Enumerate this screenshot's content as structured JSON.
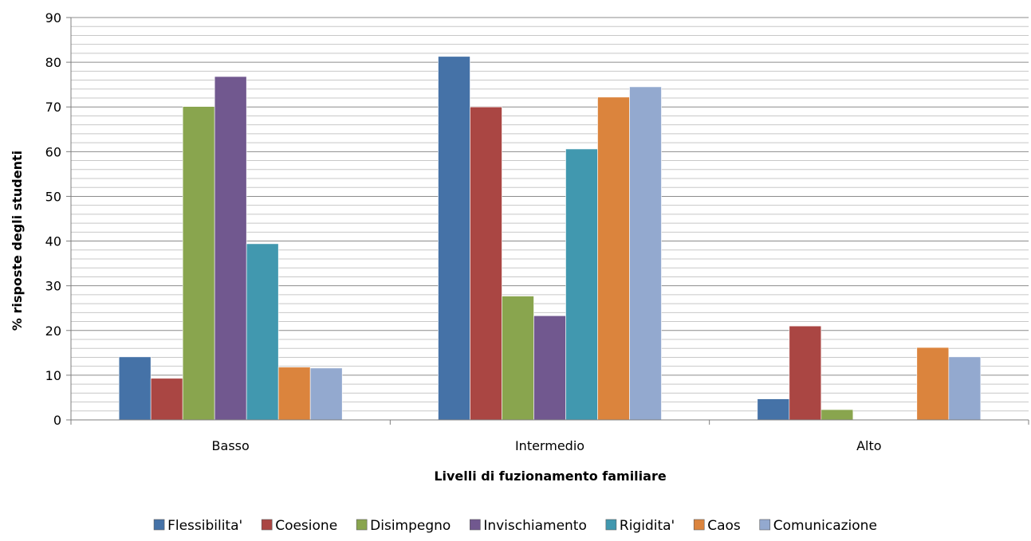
{
  "chart_data": {
    "type": "bar",
    "title": "",
    "xlabel": "Livelli di fuzionamento familiare",
    "ylabel": "% risposte degli studenti",
    "ylim": [
      0,
      90
    ],
    "ytick_step": 10,
    "minor_grid_step": 2,
    "grid": true,
    "legend_position": "bottom",
    "categories": [
      "Basso",
      "Intermedio",
      "Alto"
    ],
    "series": [
      {
        "name": "Flessibilita'",
        "color": "#4572A7",
        "values": [
          14.1,
          81.3,
          4.7
        ]
      },
      {
        "name": "Coesione",
        "color": "#AA4643",
        "values": [
          9.3,
          70.0,
          21.0
        ]
      },
      {
        "name": "Disimpegno",
        "color": "#89A54E",
        "values": [
          70.1,
          27.7,
          2.3
        ]
      },
      {
        "name": "Invischiamento",
        "color": "#71588F",
        "values": [
          76.8,
          23.3,
          0
        ]
      },
      {
        "name": "Rigidita'",
        "color": "#4198AF",
        "values": [
          39.4,
          60.6,
          0
        ]
      },
      {
        "name": "Caos",
        "color": "#DB843D",
        "values": [
          11.8,
          72.2,
          16.2
        ]
      },
      {
        "name": "Comunicazione",
        "color": "#93A9CF",
        "values": [
          11.6,
          74.5,
          14.1
        ]
      }
    ]
  }
}
